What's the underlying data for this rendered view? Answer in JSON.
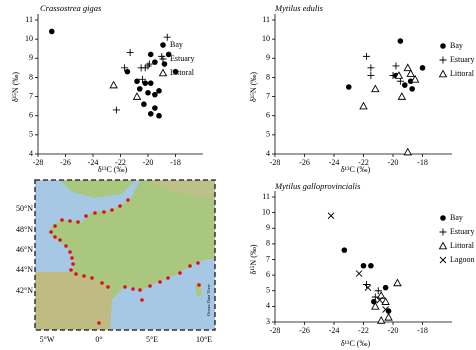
{
  "chart_data": [
    {
      "type": "scatter",
      "title": "Crassostrea gigas",
      "xlabel": "δ¹³C (‰)",
      "ylabel": "δ¹⁵N (‰)",
      "xlim": [
        -28,
        -16
      ],
      "ylim": [
        4,
        11
      ],
      "xticks": [
        -28,
        -26,
        -24,
        -22,
        -20,
        -18
      ],
      "yticks": [
        4,
        5,
        6,
        7,
        8,
        9,
        10,
        11
      ],
      "series": [
        {
          "name": "Bay",
          "marker": "circle",
          "color": "#000000",
          "x": [
            -27,
            -21.5,
            -20.8,
            -19.8,
            -19.5,
            -18.8,
            -18.5,
            -18,
            -20.2,
            -20,
            -19.8,
            -20.3,
            -19.5,
            -19.5,
            -19.8,
            -19.2,
            -20.6,
            -19.2
          ],
          "values": [
            10.4,
            8.3,
            7.8,
            9.2,
            8.8,
            8.7,
            9.2,
            8.3,
            7.7,
            7.2,
            7.7,
            6.6,
            6.4,
            7.1,
            6.1,
            6.0,
            7.4,
            7.3
          ]
        },
        {
          "name": "Estuary",
          "marker": "plus",
          "color": "#000000",
          "x": [
            -21.3,
            -21.7,
            -20.5,
            -20,
            -19.9,
            -19,
            -18.6,
            -22.3,
            -20.4,
            -20.2
          ],
          "values": [
            9.3,
            8.5,
            8.5,
            8.6,
            8.7,
            9.1,
            10.1,
            6.3,
            7.9,
            8.5
          ]
        },
        {
          "name": "Littoral",
          "marker": "triangle",
          "color": "#000000",
          "x": [
            -22.5,
            -20.8
          ],
          "values": [
            7.6,
            7.0
          ]
        }
      ]
    },
    {
      "type": "scatter",
      "title": "Mytilus edulis",
      "xlabel": "δ¹³C (‰)",
      "ylabel": "δ¹⁵N (‰)",
      "xlim": [
        -28,
        -16
      ],
      "ylim": [
        4,
        11
      ],
      "xticks": [
        -28,
        -26,
        -24,
        -22,
        -20,
        -18
      ],
      "yticks": [
        4,
        5,
        6,
        7,
        8,
        9,
        10,
        11
      ],
      "series": [
        {
          "name": "Bay",
          "marker": "circle",
          "color": "#000000",
          "x": [
            -23,
            -19.5,
            -19.8,
            -19.2,
            -18.7,
            -18,
            -18.8
          ],
          "values": [
            7.5,
            9.9,
            8.1,
            7.6,
            7.4,
            8.5,
            7.8
          ]
        },
        {
          "name": "Estuary",
          "marker": "plus",
          "color": "#000000",
          "x": [
            -21.8,
            -21.5,
            -21.5,
            -20,
            -19.8,
            -19.5
          ],
          "values": [
            9.1,
            8.5,
            8.1,
            8.1,
            8.6,
            7.8
          ]
        },
        {
          "name": "Littoral",
          "marker": "triangle",
          "color": "#000000",
          "x": [
            -22,
            -21.2,
            -19.6,
            -19.4,
            -19,
            -18.8,
            -18.5,
            -19
          ],
          "values": [
            6.5,
            7.4,
            8.1,
            7.0,
            8.5,
            8.2,
            7.9,
            4.1
          ]
        }
      ]
    },
    {
      "type": "scatter",
      "title": "Mytilus galloprovincialis",
      "xlabel": "δ¹³C (‰)",
      "ylabel": "δ¹⁵N (‰)",
      "xlim": [
        -28,
        -16
      ],
      "ylim": [
        3,
        11
      ],
      "xticks": [
        -28,
        -26,
        -24,
        -22,
        -20,
        -18
      ],
      "yticks": [
        3,
        4,
        5,
        6,
        7,
        8,
        9,
        10,
        11
      ],
      "series": [
        {
          "name": "Bay",
          "marker": "circle",
          "color": "#000000",
          "x": [
            -23.3,
            -22,
            -21.5,
            -21.3,
            -20.5,
            -20.3
          ],
          "values": [
            7.6,
            6.6,
            6.6,
            4.3,
            5.2,
            3.7
          ]
        },
        {
          "name": "Estuary",
          "marker": "plus",
          "color": "#000000",
          "x": [
            -21.8,
            -21,
            -21.2
          ],
          "values": [
            5.4,
            5.0,
            4.6
          ]
        },
        {
          "name": "Littoral",
          "marker": "triangle",
          "color": "#000000",
          "x": [
            -21.2,
            -20.8,
            -20.5,
            -20.3,
            -19.7,
            -20.8
          ],
          "values": [
            4.0,
            4.7,
            4.3,
            3.3,
            5.5,
            3.1
          ]
        },
        {
          "name": "Lagoon",
          "marker": "cross",
          "color": "#000000",
          "x": [
            -24.2,
            -22.3,
            -21.7,
            -20.9,
            -20.5
          ],
          "values": [
            9.8,
            6.1,
            5.2,
            4.4,
            3.8
          ]
        }
      ]
    }
  ],
  "map": {
    "lat_labels": [
      "50°N",
      "48°N",
      "46°N",
      "44°N",
      "42°N"
    ],
    "lon_labels": [
      "5°W",
      "0°",
      "5°E",
      "10°E"
    ],
    "credit": "Ocean Data View"
  }
}
